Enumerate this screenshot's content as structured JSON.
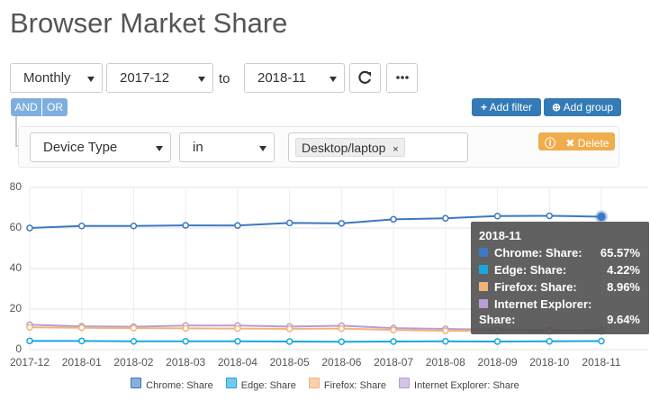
{
  "header": {
    "title": "Browser Market Share"
  },
  "controls": {
    "interval": "Monthly",
    "from": "2017-12",
    "to_label": "to",
    "to": "2018-11"
  },
  "filters": {
    "and": "AND",
    "or": "OR",
    "add_filter": "Add filter",
    "add_group": "Add group",
    "field": "Device Type",
    "operator": "in",
    "tag": "Desktop/laptop",
    "tag_remove": "×",
    "delete": "Delete"
  },
  "chart_data": {
    "type": "line",
    "categories": [
      "2017-12",
      "2018-01",
      "2018-02",
      "2018-03",
      "2018-04",
      "2018-05",
      "2018-06",
      "2018-07",
      "2018-08",
      "2018-09",
      "2018-10",
      "2018-11"
    ],
    "ylim": [
      0,
      80
    ],
    "yticks": [
      0,
      20,
      40,
      60,
      80
    ],
    "grid": true,
    "series": [
      {
        "name": "Chrome: Share",
        "color": "#3c78c3",
        "values": [
          60.0,
          61.0,
          61.0,
          61.3,
          61.2,
          62.5,
          62.3,
          64.3,
          64.8,
          65.9,
          66.0,
          65.57
        ],
        "value_labels": [
          null,
          null,
          null,
          null,
          null,
          null,
          null,
          null,
          null,
          null,
          null,
          "65.57%"
        ]
      },
      {
        "name": "Edge: Share",
        "color": "#18a7df",
        "values": [
          4.3,
          4.3,
          4.1,
          4.1,
          4.1,
          4.0,
          3.9,
          4.0,
          4.1,
          4.0,
          4.1,
          4.22
        ],
        "value_labels": [
          null,
          null,
          null,
          null,
          null,
          null,
          null,
          null,
          null,
          null,
          null,
          "4.22%"
        ]
      },
      {
        "name": "Firefox: Share",
        "color": "#f4b27a",
        "values": [
          11.0,
          10.8,
          10.6,
          10.5,
          10.4,
          10.3,
          10.4,
          9.7,
          9.3,
          9.2,
          9.0,
          8.96
        ],
        "value_labels": [
          null,
          null,
          null,
          null,
          null,
          null,
          null,
          null,
          null,
          null,
          null,
          "8.96%"
        ]
      },
      {
        "name": "Internet Explorer: Share",
        "color": "#b59fd3",
        "values": [
          12.3,
          11.5,
          11.3,
          11.9,
          11.9,
          11.4,
          11.8,
          10.6,
          10.2,
          9.9,
          9.7,
          9.64
        ],
        "value_labels": [
          null,
          null,
          null,
          null,
          null,
          null,
          null,
          null,
          null,
          null,
          null,
          "9.64%"
        ]
      }
    ],
    "tooltip": {
      "labels": [
        "Chrome: Share:",
        "Edge: Share:",
        "Firefox: Share:",
        "Internet Explorer: Share:"
      ]
    }
  }
}
